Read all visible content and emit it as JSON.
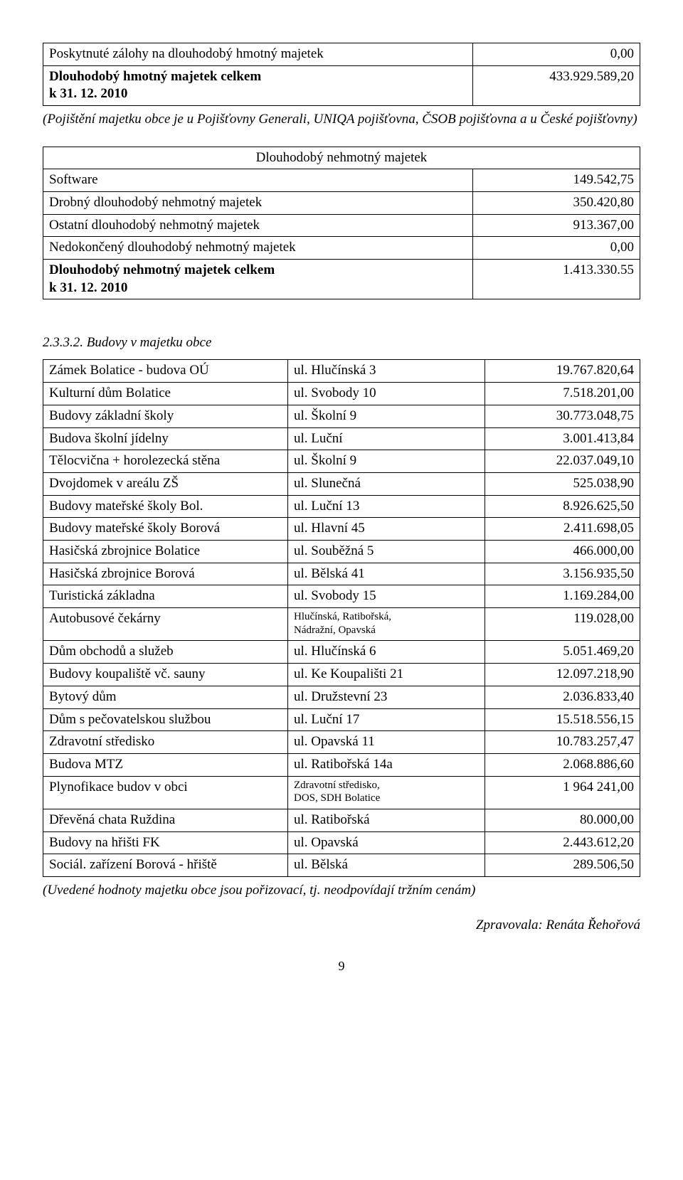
{
  "table1": {
    "rows": [
      {
        "label": "Poskytnuté zálohy na dlouhodobý hmotný majetek",
        "value": "0,00",
        "bold": false
      },
      {
        "label": "Dlouhodobý hmotný majetek celkem\nk 31. 12. 2010",
        "value": "433.929.589,20",
        "bold": true
      }
    ]
  },
  "note1": "(Pojištění majetku obce je u Pojišťovny Generali, UNIQA pojišťovna, ČSOB pojišťovna a u České pojišťovny)",
  "table2": {
    "header": "Dlouhodobý nehmotný majetek",
    "rows": [
      {
        "label": "Software",
        "value": "149.542,75",
        "bold": false
      },
      {
        "label": "Drobný dlouhodobý nehmotný majetek",
        "value": "350.420,80",
        "bold": false
      },
      {
        "label": "Ostatní dlouhodobý nehmotný majetek",
        "value": "913.367,00",
        "bold": false
      },
      {
        "label": "Nedokončený dlouhodobý nehmotný majetek",
        "value": "0,00",
        "bold": false
      },
      {
        "label": "Dlouhodobý nehmotný majetek celkem\nk 31. 12. 2010",
        "value": "1.413.330.55",
        "bold": true
      }
    ]
  },
  "section_heading": "2.3.3.2. Budovy v majetku obce",
  "table3": {
    "rows": [
      {
        "c1": "Zámek Bolatice - budova OÚ",
        "c2": "ul. Hlučínská 3",
        "c3": "19.767.820,64"
      },
      {
        "c1": "Kulturní dům Bolatice",
        "c2": "ul. Svobody 10",
        "c3": "7.518.201,00"
      },
      {
        "c1": "Budovy základní školy",
        "c2": "ul. Školní 9",
        "c3": "30.773.048,75"
      },
      {
        "c1": "Budova školní jídelny",
        "c2": "ul. Luční",
        "c3": "3.001.413,84"
      },
      {
        "c1": "Tělocvična + horolezecká stěna",
        "c2": "ul. Školní 9",
        "c3": "22.037.049,10"
      },
      {
        "c1": "Dvojdomek v areálu ZŠ",
        "c2": "ul. Slunečná",
        "c3": "525.038,90"
      },
      {
        "c1": "Budovy mateřské školy Bol.",
        "c2": "ul. Luční 13",
        "c3": "8.926.625,50"
      },
      {
        "c1": "Budovy mateřské školy Borová",
        "c2": "ul. Hlavní 45",
        "c3": "2.411.698,05"
      },
      {
        "c1": "Hasičská zbrojnice Bolatice",
        "c2": "ul. Souběžná 5",
        "c3": "466.000,00"
      },
      {
        "c1": "Hasičská zbrojnice Borová",
        "c2": "ul. Bělská 41",
        "c3": "3.156.935,50"
      },
      {
        "c1": "Turistická základna",
        "c2": "ul. Svobody 15",
        "c3": "1.169.284,00"
      },
      {
        "c1": "Autobusové čekárny",
        "c2": "Hlučínská, Ratibořská,\nNádražní, Opavská",
        "c2small": true,
        "c3": "119.028,00"
      },
      {
        "c1": "Dům obchodů a služeb",
        "c2": "ul. Hlučínská 6",
        "c3": "5.051.469,20"
      },
      {
        "c1": "Budovy koupaliště vč. sauny",
        "c2": "ul. Ke Koupališti 21",
        "c3": "12.097.218,90"
      },
      {
        "c1": "Bytový dům",
        "c2": "ul. Družstevní 23",
        "c3": "2.036.833,40"
      },
      {
        "c1": "Dům s pečovatelskou službou",
        "c2": "ul. Luční  17",
        "c3": "15.518.556,15"
      },
      {
        "c1": "Zdravotní středisko",
        "c2": "ul. Opavská 11",
        "c3": "10.783.257,47"
      },
      {
        "c1": "Budova MTZ",
        "c2": "ul. Ratibořská 14a",
        "c3": "2.068.886,60"
      },
      {
        "c1": "Plynofikace budov v obci",
        "c2": "Zdravotní středisko,\nDOS, SDH Bolatice",
        "c2small": true,
        "c3": "1 964 241,00"
      },
      {
        "c1": "Dřevěná chata Ruždina",
        "c2": "ul. Ratibořská",
        "c3": "80.000,00"
      },
      {
        "c1": "Budovy na hřišti FK",
        "c2": "ul. Opavská",
        "c3": "2.443.612,20"
      },
      {
        "c1": "Sociál. zařízení Borová - hřiště",
        "c2": "ul. Bělská",
        "c3": "289.506,50"
      }
    ]
  },
  "footer_note": "(Uvedené hodnoty majetku obce jsou pořizovací, tj. neodpovídají tržním cenám)",
  "author": "Zpravovala: Renáta Řehořová",
  "page_num": "9",
  "layout": {
    "t1_col1_w": "72%",
    "t1_col2_w": "28%",
    "t3_col1_w": "41%",
    "t3_col2_w": "33%",
    "t3_col3_w": "26%"
  }
}
